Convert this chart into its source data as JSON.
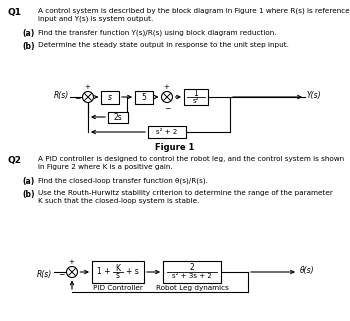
{
  "bg_color": "#ffffff",
  "q1_label": "Q1",
  "q1_text1": "A control system is described by the block diagram in Figure 1 where R(s) is reference",
  "q1_text2": "input and Y(s) is system output.",
  "q1_a_label": "(a)",
  "q1_a_text": "Find the transfer function Y(s)/R(s) using block diagram reduction.",
  "q1_b_label": "(b)",
  "q1_b_text": "Determine the steady state output in response to the unit step input.",
  "figure1_label": "Figure 1",
  "q2_label": "Q2",
  "q2_text1": "A PID controller is designed to control the robot leg, and the control system is shown",
  "q2_text2": "in Figure 2 where K is a positive gain.",
  "q2_a_label": "(a)",
  "q2_a_text": "Find the closed-loop transfer function θ(s)/R(s).",
  "q2_b_label": "(b)",
  "q2_b_text1": "Use the Routh-Hurwitz stability criterion to determine the range of the parameter",
  "q2_b_text2": "K such that the closed-loop system is stable.",
  "fig1_Rs": "R(s)",
  "fig1_Ys": "Y(s)",
  "fig1_block1": "s",
  "fig1_block2": "5",
  "fig1_block3_num": "1",
  "fig1_block3_den": "s²",
  "fig1_fb1": "2s",
  "fig1_fb2": "s² + 2",
  "fig2_Rs": "R(s)",
  "fig2_Theta": "θ(s)",
  "fig2_pid_num": "K",
  "fig2_pid_pre": "1 +",
  "fig2_pid_den": "s",
  "fig2_pid_post": "+ s",
  "fig2_pid_label": "PID Controller",
  "fig2_plant_num": "2",
  "fig2_plant_den": "s² + 3s + 2",
  "fig2_plant_label": "Robot Leg dynamics"
}
